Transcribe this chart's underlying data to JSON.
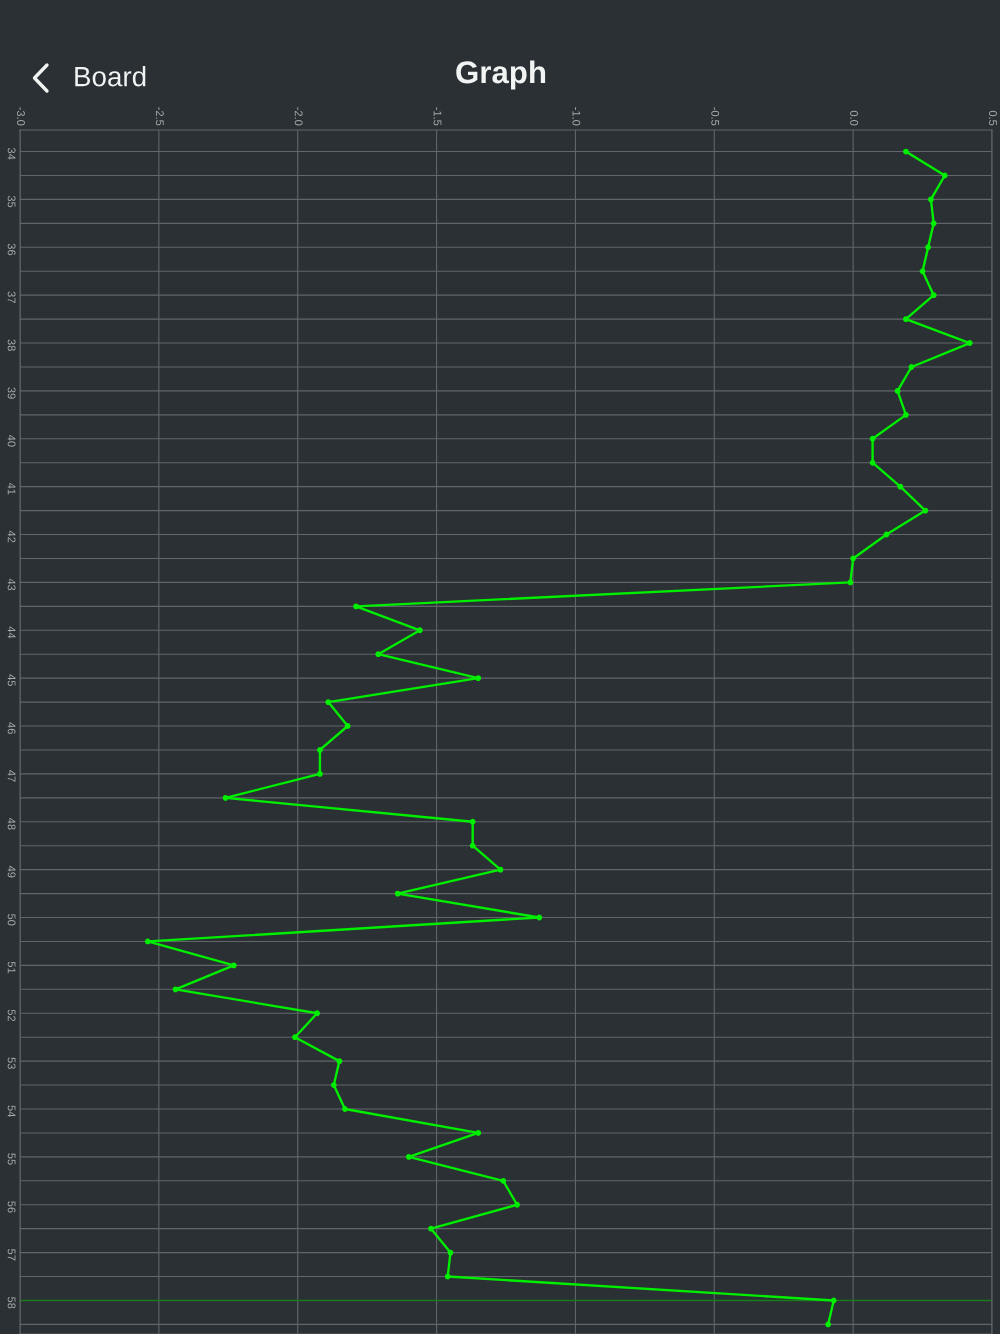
{
  "chart_data": {
    "type": "line",
    "title": "Graph",
    "annotations": [
      "Board"
    ],
    "orientation": "horizontal",
    "x": [
      34,
      34.5,
      35,
      35.5,
      36,
      36.5,
      37,
      37.5,
      38,
      38.5,
      39,
      39.5,
      40,
      40.5,
      41,
      41.5,
      42,
      42.5,
      43,
      43.5,
      44,
      44.5,
      45,
      45.5,
      46,
      46.5,
      47,
      47.5,
      48,
      48.5,
      49,
      49.5,
      50,
      50.5,
      51,
      51.5,
      52,
      52.5,
      53,
      53.5,
      54,
      54.5,
      55,
      55.5,
      56,
      56.5,
      57,
      57.5,
      58,
      58.5
    ],
    "series": [
      {
        "color": "#00ee00",
        "values": [
          0.19,
          0.33,
          0.28,
          0.29,
          0.27,
          0.25,
          0.29,
          0.19,
          0.42,
          0.21,
          0.16,
          0.19,
          0.07,
          0.07,
          0.17,
          0.26,
          0.12,
          0.0,
          -0.01,
          -1.79,
          -1.56,
          -1.71,
          -1.35,
          -1.89,
          -1.82,
          -1.92,
          -1.92,
          -2.26,
          -1.37,
          -1.37,
          -1.27,
          -1.64,
          -1.13,
          -2.54,
          -2.23,
          -2.44,
          -1.93,
          -2.01,
          -1.85,
          -1.87,
          -1.83,
          -1.35,
          -1.6,
          -1.26,
          -1.21,
          -1.52,
          -1.45,
          -1.46,
          -0.07,
          -0.09
        ]
      }
    ],
    "xlim": [
      -3,
      0.5
    ],
    "xticks": [
      {
        "value": -3,
        "label": "-3.0"
      },
      {
        "value": -2.5,
        "label": "-2.5"
      },
      {
        "value": -2,
        "label": "-2.0"
      },
      {
        "value": -1.5,
        "label": "-1.5"
      },
      {
        "value": -1,
        "label": "-1.0"
      },
      {
        "value": -0.5,
        "label": "-0.5"
      },
      {
        "value": 0,
        "label": "0.0"
      },
      {
        "value": 0.5,
        "label": "0.5"
      }
    ],
    "ylim": [
      58.7,
      33.55
    ],
    "yticks": [
      34,
      {
        "value": 34.5,
        "label": null
      },
      35,
      {
        "value": 35.5,
        "label": null
      },
      36,
      {
        "value": 36.5,
        "label": null
      },
      37,
      {
        "value": 37.5,
        "label": null
      },
      38,
      {
        "value": 38.5,
        "label": null
      },
      39,
      {
        "value": 39.5,
        "label": null
      },
      40,
      {
        "value": 40.5,
        "label": null
      },
      41,
      {
        "value": 41.5,
        "label": null
      },
      42,
      {
        "value": 42.5,
        "label": null
      },
      43,
      {
        "value": 43.5,
        "label": null
      },
      44,
      {
        "value": 44.5,
        "label": null
      },
      45,
      {
        "value": 45.5,
        "label": null
      },
      46,
      {
        "value": 46.5,
        "label": null
      },
      47,
      {
        "value": 47.5,
        "label": null
      },
      48,
      {
        "value": 48.5,
        "label": null
      },
      49,
      {
        "value": 49.5,
        "label": null
      },
      50,
      {
        "value": 50.5,
        "label": null
      },
      51,
      {
        "value": 51.5,
        "label": null
      },
      52,
      {
        "value": 52.5,
        "label": null
      },
      53,
      {
        "value": 53.5,
        "label": null
      },
      54,
      {
        "value": 54.5,
        "label": null
      },
      55,
      {
        "value": 55.5,
        "label": null
      },
      56,
      {
        "value": 56.5,
        "label": null
      },
      57,
      {
        "value": 57.5,
        "label": null
      },
      58,
      {
        "value": 58.5,
        "label": null
      }
    ],
    "ref_lines": [
      {
        "axis": "y",
        "value": 58,
        "color": "#1d7a1d"
      }
    ],
    "grid": true,
    "marker": "circle",
    "line_style": "solid"
  }
}
